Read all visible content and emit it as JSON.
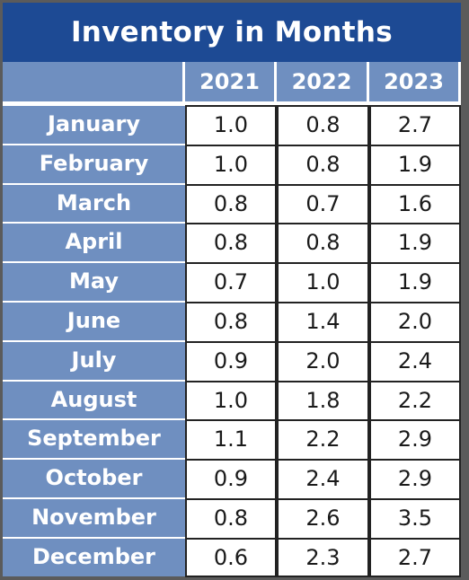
{
  "chart_data": {
    "type": "table",
    "title": "Inventory in Months",
    "columns": [
      "2021",
      "2022",
      "2023"
    ],
    "rows": [
      {
        "label": "January",
        "values": [
          "1.0",
          "0.8",
          "2.7"
        ]
      },
      {
        "label": "February",
        "values": [
          "1.0",
          "0.8",
          "1.9"
        ]
      },
      {
        "label": "March",
        "values": [
          "0.8",
          "0.7",
          "1.6"
        ]
      },
      {
        "label": "April",
        "values": [
          "0.8",
          "0.8",
          "1.9"
        ]
      },
      {
        "label": "May",
        "values": [
          "0.7",
          "1.0",
          "1.9"
        ]
      },
      {
        "label": "June",
        "values": [
          "0.8",
          "1.4",
          "2.0"
        ]
      },
      {
        "label": "July",
        "values": [
          "0.9",
          "2.0",
          "2.4"
        ]
      },
      {
        "label": "August",
        "values": [
          "1.0",
          "1.8",
          "2.2"
        ]
      },
      {
        "label": "September",
        "values": [
          "1.1",
          "2.2",
          "2.9"
        ]
      },
      {
        "label": "October",
        "values": [
          "0.9",
          "2.4",
          "2.9"
        ]
      },
      {
        "label": "November",
        "values": [
          "0.8",
          "2.6",
          "3.5"
        ]
      },
      {
        "label": "December",
        "values": [
          "0.6",
          "2.3",
          "2.7"
        ]
      }
    ]
  },
  "colors": {
    "title_background": "#1d4a94",
    "header_background": "#6f8fc0",
    "frame": "#5b5b5b",
    "value_background": "#ffffff"
  }
}
